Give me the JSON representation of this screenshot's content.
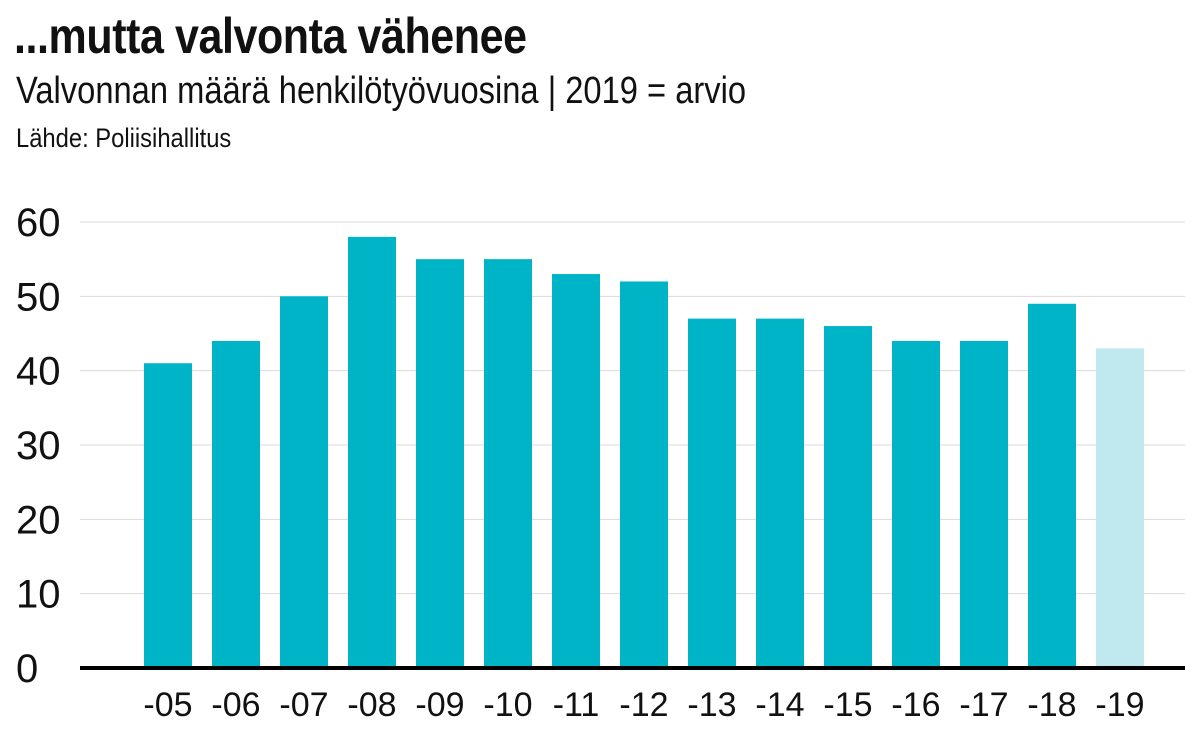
{
  "title": "...mutta valvonta vähenee",
  "subtitle": "Valvonnan määrä henkilötyövuosina | 2019 = arvio",
  "source": "Lähde: Poliisihallitus",
  "chart_data": {
    "type": "bar",
    "categories": [
      "-05",
      "-06",
      "-07",
      "-08",
      "-09",
      "-10",
      "-11",
      "-12",
      "-13",
      "-14",
      "-15",
      "-16",
      "-17",
      "-18",
      "-19"
    ],
    "values": [
      41,
      44,
      50,
      58,
      55,
      55,
      53,
      52,
      47,
      47,
      46,
      44,
      44,
      49,
      43
    ],
    "estimated": [
      false,
      false,
      false,
      false,
      false,
      false,
      false,
      false,
      false,
      false,
      false,
      false,
      false,
      false,
      true
    ],
    "ylim": [
      0,
      60
    ],
    "yticks": [
      0,
      10,
      20,
      30,
      40,
      50,
      60
    ],
    "grid": true,
    "xlabel": "",
    "ylabel": "",
    "colors": {
      "bar": "#00b4c8",
      "estimate": "#bfe9ef",
      "grid": "#d9d9d9",
      "baseline": "#000000"
    }
  }
}
